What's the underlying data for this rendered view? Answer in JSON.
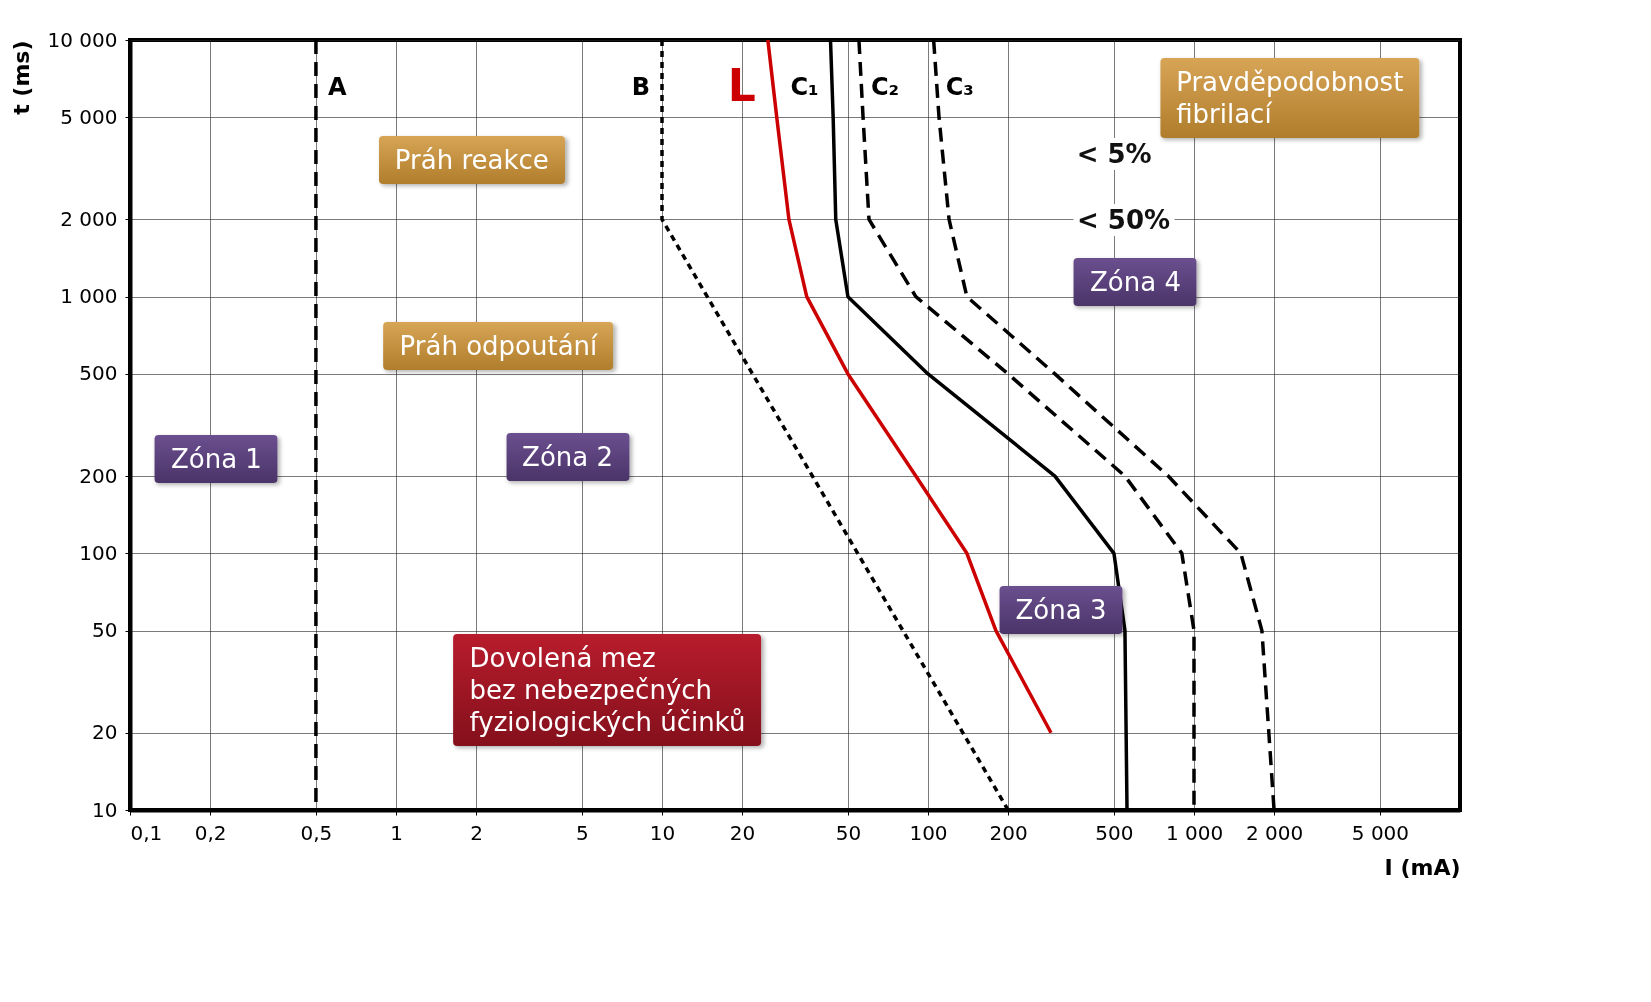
{
  "chart_data": {
    "type": "line",
    "xlabel": "I (mA)",
    "ylabel": "t (ms)",
    "log": "xy",
    "grid": true,
    "legend": false,
    "xlim": [
      0.1,
      10000
    ],
    "ylim": [
      10,
      10000
    ],
    "xticks": [
      {
        "value": 0.1,
        "label": "0,1"
      },
      {
        "value": 0.2,
        "label": "0,2"
      },
      {
        "value": 0.5,
        "label": "0,5"
      },
      1,
      2,
      5,
      10,
      20,
      50,
      100,
      200,
      500,
      {
        "value": 1000,
        "label": "1 000"
      },
      {
        "value": 2000,
        "label": "2 000"
      },
      {
        "value": 5000,
        "label": "5 000"
      }
    ],
    "yticks": [
      10,
      20,
      50,
      100,
      200,
      500,
      {
        "value": 1000,
        "label": "1 000"
      },
      {
        "value": 2000,
        "label": "2 000"
      },
      {
        "value": 5000,
        "label": "5 000"
      },
      {
        "value": 10000,
        "label": "10 000"
      }
    ],
    "series": [
      {
        "name": "A",
        "color": "#000000",
        "line_style": "dashed",
        "x": [
          0.5,
          0.5
        ],
        "values": [
          10000,
          10
        ]
      },
      {
        "name": "B",
        "color": "#000000",
        "line_style": "dotted",
        "x": [
          10,
          10,
          200
        ],
        "values": [
          10000,
          2000,
          10
        ]
      },
      {
        "name": "L",
        "color": "#cc0000",
        "line_style": "solid",
        "x": [
          25,
          27,
          30,
          35,
          50,
          90,
          140,
          180,
          290
        ],
        "values": [
          10000,
          5000,
          2000,
          1000,
          500,
          200,
          100,
          50,
          20
        ]
      },
      {
        "name": "C₁",
        "color": "#000000",
        "line_style": "solid",
        "x": [
          43,
          44,
          45,
          50,
          100,
          300,
          500,
          550,
          560
        ],
        "values": [
          10000,
          5000,
          2000,
          1000,
          500,
          200,
          100,
          50,
          10
        ]
      },
      {
        "name": "C₂",
        "color": "#000000",
        "line_style": "dashed",
        "x": [
          55,
          57,
          60,
          90,
          200,
          550,
          900,
          1000,
          1000
        ],
        "values": [
          10000,
          5000,
          2000,
          1000,
          500,
          200,
          100,
          50,
          10
        ]
      },
      {
        "name": "C₃",
        "color": "#000000",
        "line_style": "dashed",
        "x": [
          105,
          110,
          120,
          140,
          300,
          800,
          1500,
          1800,
          2000
        ],
        "values": [
          10000,
          5000,
          2000,
          1000,
          500,
          200,
          100,
          50,
          10
        ]
      }
    ],
    "annotations": [
      "Práh reakce",
      "Práh odpoutání",
      "Dovolená mez\nbez nebezpečných\nfyziologických účinků",
      "Pravděpodobnost\nfibrilací",
      "< 5%",
      "< 50%",
      "Zóna 1",
      "Zóna 2",
      "Zóna 3",
      "Zóna 4"
    ]
  }
}
